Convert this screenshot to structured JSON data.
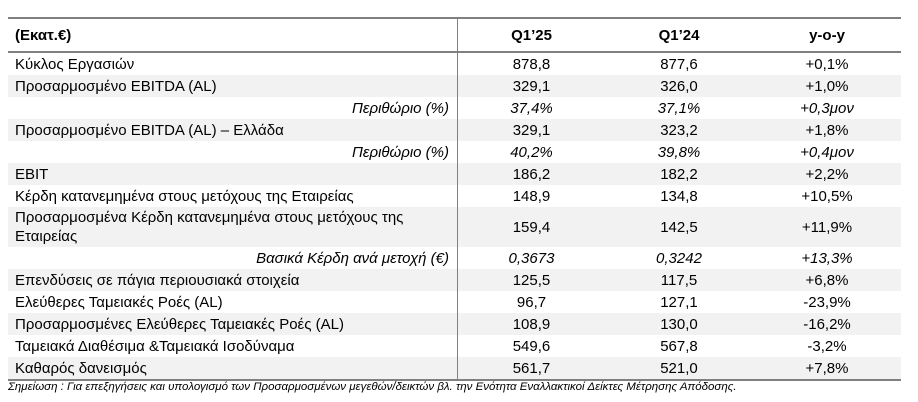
{
  "colors": {
    "stripe": "#f2f2f2",
    "border": "#808080",
    "text": "#000000",
    "background": "#ffffff"
  },
  "table": {
    "unit_header": "(Εκατ.€)",
    "columns": [
      "Q1’25",
      "Q1’24",
      "y-o-y"
    ],
    "rows": [
      {
        "label": "Κύκλος Εργασιών",
        "q1_25": "878,8",
        "q1_24": "877,6",
        "yoy": "+0,1%"
      },
      {
        "label": "Προσαρμοσμένο EBITDA (AL)",
        "q1_25": "329,1",
        "q1_24": "326,0",
        "yoy": "+1,0%"
      },
      {
        "label": "Περιθώριο (%)",
        "q1_25": "37,4%",
        "q1_24": "37,1%",
        "yoy": "+0,3μον"
      },
      {
        "label": "Προσαρμοσμένο EBITDA (AL) – Ελλάδα",
        "q1_25": "329,1",
        "q1_24": "323,2",
        "yoy": "+1,8%"
      },
      {
        "label": "Περιθώριο (%)",
        "q1_25": "40,2%",
        "q1_24": "39,8%",
        "yoy": "+0,4μον"
      },
      {
        "label": "EBIT",
        "q1_25": "186,2",
        "q1_24": "182,2",
        "yoy": "+2,2%"
      },
      {
        "label": "Κέρδη κατανεμημένα στους μετόχους της Εταιρείας",
        "q1_25": "148,9",
        "q1_24": "134,8",
        "yoy": "+10,5%"
      },
      {
        "label": "Προσαρμοσμένα Κέρδη κατανεμημένα στους μετόχους της Εταιρείας",
        "q1_25": "159,4",
        "q1_24": "142,5",
        "yoy": "+11,9%"
      },
      {
        "label": "Βασικά Κέρδη ανά μετοχή (€)",
        "q1_25": "0,3673",
        "q1_24": "0,3242",
        "yoy": "+13,3%"
      },
      {
        "label": "Επενδύσεις σε πάγια περιουσιακά στοιχεία",
        "q1_25": "125,5",
        "q1_24": "117,5",
        "yoy": "+6,8%"
      },
      {
        "label": "Ελεύθερες Ταμειακές Ροές (AL)",
        "q1_25": "96,7",
        "q1_24": "127,1",
        "yoy": "-23,9%"
      },
      {
        "label": "Προσαρμοσμένες Ελεύθερες Ταμειακές Ροές (AL)",
        "q1_25": "108,9",
        "q1_24": "130,0",
        "yoy": "-16,2%"
      },
      {
        "label": "Ταμειακά Διαθέσιμα &Ταμειακά Ισοδύναμα",
        "q1_25": "549,6",
        "q1_24": "567,8",
        "yoy": "-3,2%"
      },
      {
        "label": "Καθαρός δανεισμός",
        "q1_25": "561,7",
        "q1_24": "521,0",
        "yoy": "+7,8%"
      }
    ]
  },
  "footnote": "Σημείωση : Για επεξηγήσεις και υπολογισμό των Προσαρμοσμένων μεγεθών/δεικτών βλ. την Ενότητα Εναλλακτικοί Δείκτες Μέτρησης Απόδοσης."
}
